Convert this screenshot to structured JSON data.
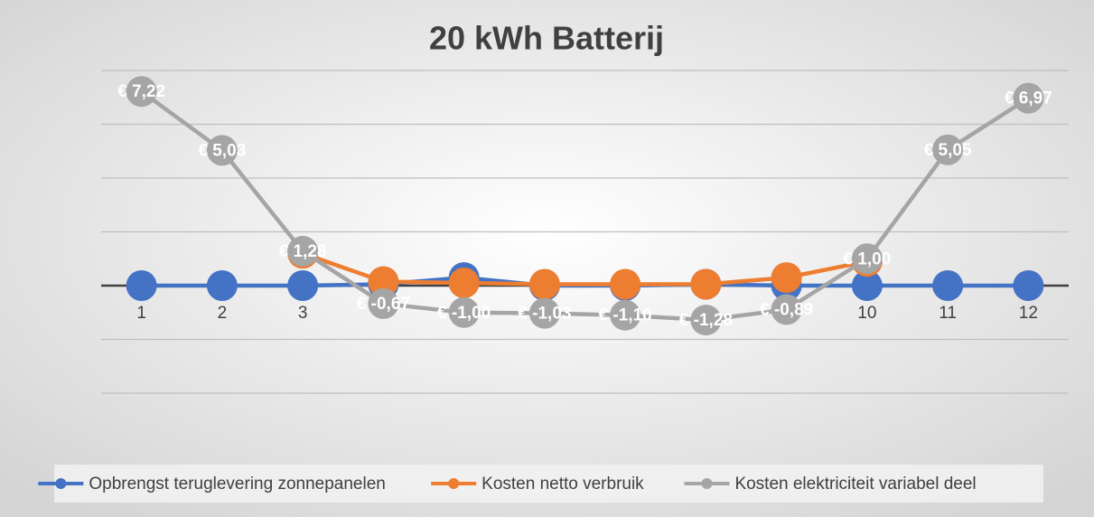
{
  "chart_data": {
    "type": "line",
    "title": "20 kWh Batterij",
    "categories": [
      "1",
      "2",
      "3",
      "4",
      "5",
      "6",
      "7",
      "8",
      "9",
      "10",
      "11",
      "12"
    ],
    "ylim": [
      -4,
      8
    ],
    "yticks": [
      -4,
      -2,
      0,
      2,
      4,
      6,
      8
    ],
    "grid": true,
    "legend": "bottom",
    "series": [
      {
        "name": "Opbrengst teruglevering zonnepanelen",
        "color": "#4472c4",
        "values": [
          0,
          0,
          0,
          0.05,
          0.3,
          0,
          0,
          0.05,
          0,
          0,
          0,
          0
        ]
      },
      {
        "name": "Kosten netto verbruik",
        "color": "#ed7d31",
        "values": [
          null,
          null,
          1.2,
          0.15,
          0.1,
          0.05,
          0.05,
          0.05,
          0.3,
          0.9,
          null,
          null
        ]
      },
      {
        "name": "Kosten elektriciteit variabel deel",
        "color": "#a5a5a5",
        "values": [
          7.22,
          5.03,
          1.28,
          -0.67,
          -1.0,
          -1.03,
          -1.1,
          -1.28,
          -0.89,
          1.0,
          5.05,
          6.97
        ],
        "value_labels": [
          "€ 7,22",
          "€ 5,03",
          "€ 1,28",
          "€ -0,67",
          "€ -1,00",
          "€ -1,03",
          "€ -1,10",
          "€ -1,28",
          "€ -0,89",
          "€ 1,00",
          "€ 5,05",
          "€ 6,97"
        ]
      }
    ]
  }
}
